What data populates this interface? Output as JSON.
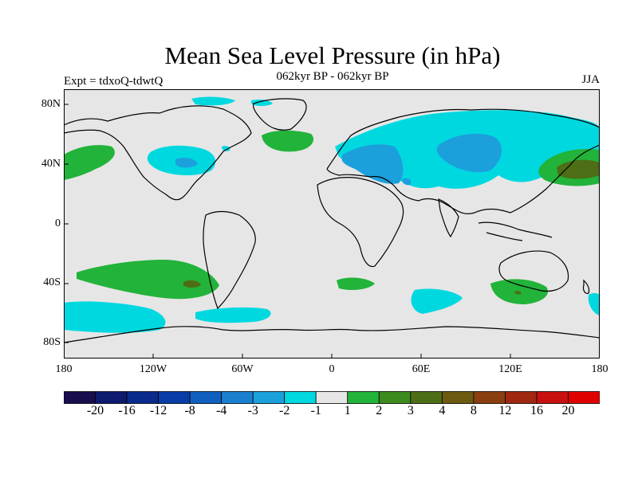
{
  "title": "Mean Sea Level Pressure (in hPa)",
  "subtitle": "062kyr BP - 062kyr BP",
  "experiment": "Expt = tdxoQ-tdwtQ",
  "season": "JJA",
  "y_axis_labels": [
    "80N",
    "40N",
    "0",
    "40S",
    "80S"
  ],
  "x_axis_labels": [
    "180",
    "120W",
    "60W",
    "0",
    "60E",
    "120E",
    "180"
  ],
  "colorbar": {
    "colors": [
      "#1a0d4d",
      "#0d1a6e",
      "#0a2a8c",
      "#0a3ca8",
      "#1060c0",
      "#1b7fd0",
      "#1ba0dc",
      "#00d8e0",
      "#e6e6e6",
      "#22b33a",
      "#3d8a1e",
      "#4d6e14",
      "#6b5a10",
      "#8a3f10",
      "#a02810",
      "#c81010",
      "#e00000"
    ],
    "labels": [
      "-20",
      "-16",
      "-12",
      "-8",
      "-4",
      "-3",
      "-2",
      "-1",
      "1",
      "2",
      "3",
      "4",
      "8",
      "12",
      "16",
      "20"
    ]
  },
  "map_colors": {
    "ocean_bg": "#e6e6e6",
    "negative_light": "#00d8e0",
    "negative_mid": "#1ba0dc",
    "positive_light": "#22b33a",
    "positive_mid": "#4d6e14"
  }
}
